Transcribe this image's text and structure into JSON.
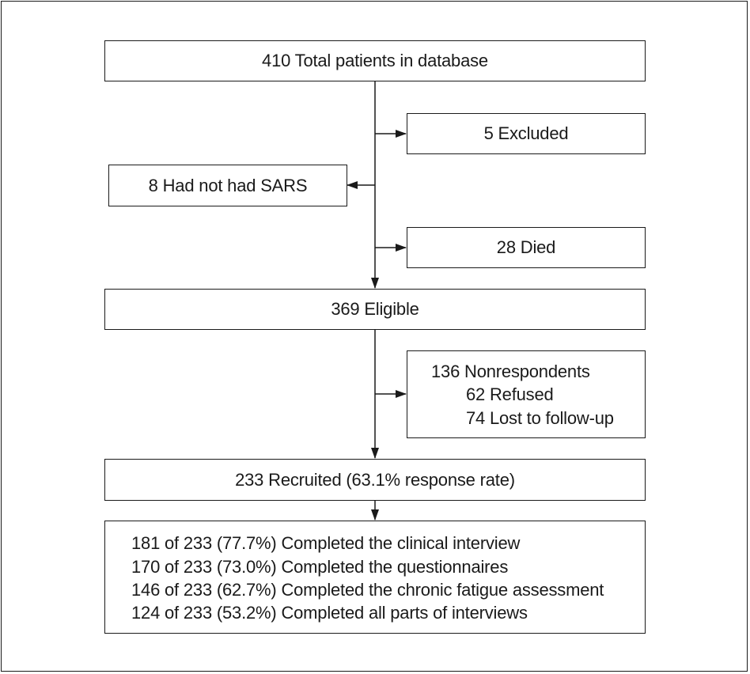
{
  "flow": {
    "total": "410 Total patients in database",
    "excluded": "5 Excluded",
    "no_sars": "8 Had not had SARS",
    "died": "28 Died",
    "eligible": "369 Eligible",
    "nonrespondents": {
      "title": "136 Nonrespondents",
      "refused": "62 Refused",
      "lost": "74 Lost to follow-up"
    },
    "recruited": "233 Recruited (63.1% response rate)",
    "completed": [
      "181 of 233 (77.7%) Completed the clinical interview",
      "170 of 233 (73.0%) Completed the questionnaires",
      "146 of 233 (62.7%) Completed the chronic fatigue assessment",
      "124 of 233 (53.2%) Completed all parts of interviews"
    ]
  }
}
